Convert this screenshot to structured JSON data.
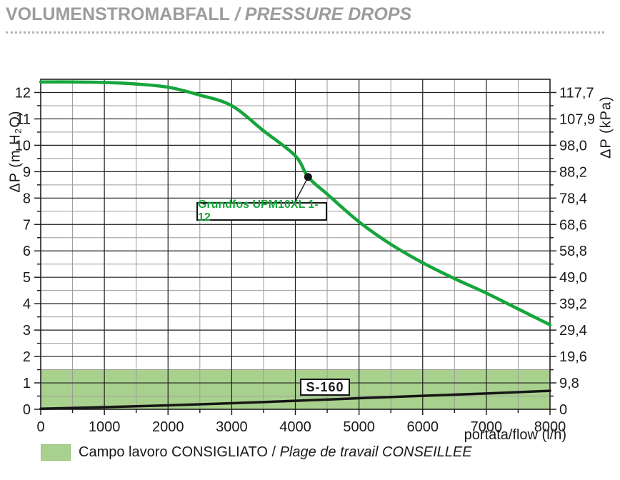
{
  "page": {
    "title_main": "VOLUMENSTROMABFALL",
    "title_sub": "/ PRESSURE DROPS"
  },
  "colors": {
    "title_gray": "#9c9c9c",
    "curve_green": "#16a53c",
    "band_green": "#a9d18e",
    "grid_major": "#1f1f1f",
    "grid_minor": "#9b9b9b",
    "text": "#1a1a1a"
  },
  "chart_data": {
    "type": "line",
    "xlabel": "portata/flow (l/h)",
    "ylabel_left": "ΔP (m H₂O)",
    "ylabel_right": "ΔP (kPa)",
    "xlim": [
      0,
      8000
    ],
    "ylim_left": [
      0,
      12.5
    ],
    "x_major_ticks": [
      0,
      1000,
      2000,
      3000,
      4000,
      5000,
      6000,
      7000,
      8000
    ],
    "x_minor_step": 500,
    "y_major_ticks": [
      0,
      1,
      2,
      3,
      4,
      5,
      6,
      7,
      8,
      9,
      10,
      11,
      12
    ],
    "y_minor_step": 0.5,
    "grid": true,
    "right_ticks": [
      {
        "value": 12,
        "label": "117,7"
      },
      {
        "value": 11,
        "label": "107,9"
      },
      {
        "value": 10,
        "label": "98,0"
      },
      {
        "value": 9,
        "label": "88,2"
      },
      {
        "value": 8,
        "label": "78,4"
      },
      {
        "value": 7,
        "label": "68,6"
      },
      {
        "value": 6,
        "label": "58,8"
      },
      {
        "value": 5,
        "label": "49,0"
      },
      {
        "value": 4,
        "label": "39,2"
      },
      {
        "value": 3,
        "label": "29,4"
      },
      {
        "value": 2,
        "label": "19,6"
      },
      {
        "value": 1,
        "label": "9,8"
      },
      {
        "value": 0,
        "label": "0"
      }
    ],
    "series": [
      {
        "name": "Grundfos UPM10XL 1-12",
        "color": "#16a53c",
        "width": 4.5,
        "x": [
          0,
          500,
          1000,
          1500,
          2000,
          2500,
          3000,
          3500,
          4000,
          4200,
          4500,
          5000,
          5500,
          6000,
          6500,
          7000,
          7500,
          8000
        ],
        "y": [
          12.4,
          12.4,
          12.38,
          12.32,
          12.2,
          11.9,
          11.5,
          10.55,
          9.6,
          8.8,
          8.15,
          7.1,
          6.25,
          5.55,
          4.95,
          4.4,
          3.8,
          3.2
        ]
      },
      {
        "name": "S-160",
        "color": "#161616",
        "width": 3.5,
        "x": [
          0,
          1000,
          2000,
          3000,
          4000,
          5000,
          6000,
          7000,
          8000
        ],
        "y": [
          0.02,
          0.08,
          0.15,
          0.23,
          0.32,
          0.42,
          0.51,
          0.6,
          0.7
        ]
      }
    ],
    "recommended_band": {
      "y_from": 0,
      "y_to": 1.5,
      "color": "#a9d18e"
    },
    "annotation": {
      "label": "Grundfos UPM10XL 1-12",
      "x": 4200,
      "y": 8.8,
      "label_color": "#16a53c"
    }
  },
  "legend": {
    "swatch_color": "#a9d18e",
    "text_regular": "Campo lavoro CONSIGLIATO / ",
    "text_italic": "Plage de travail CONSEILLEE"
  }
}
